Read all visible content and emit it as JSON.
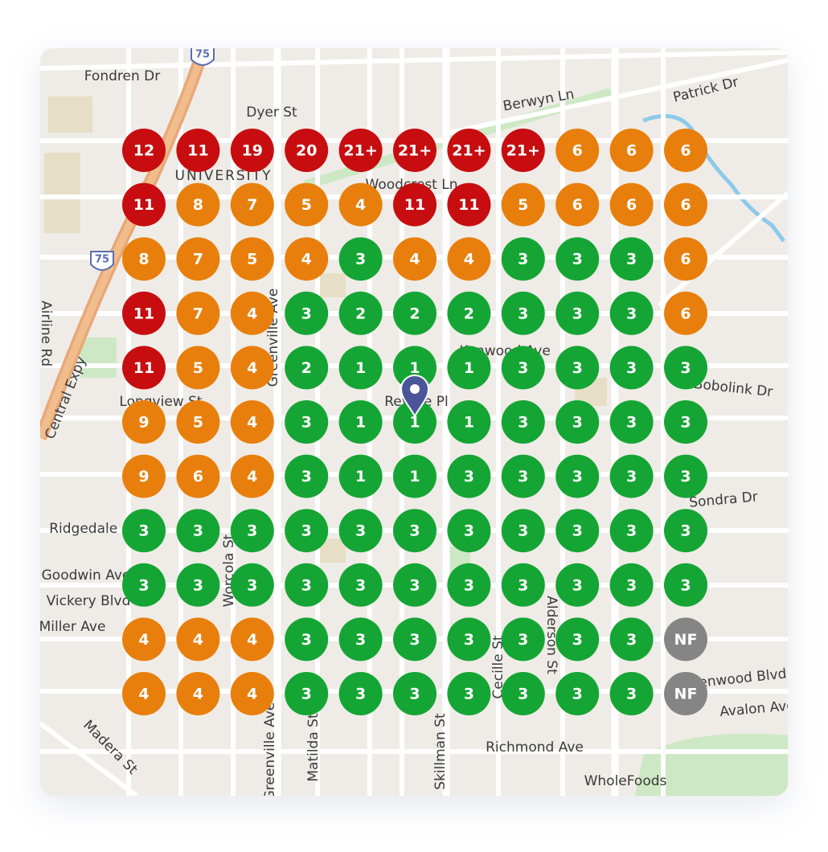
{
  "map": {
    "highway_shields": [
      "75",
      "75"
    ],
    "streets": [
      "Fondren Dr",
      "Dyer St",
      "Berwyn Ln",
      "Patrick Dr",
      "UNIVERSITY",
      "Woodcrest Ln",
      "Airline Rd",
      "Central Expy",
      "Greenville Ave",
      "Longview St",
      "Revere Pl",
      "Kenwood Ave",
      "Bobolink Dr",
      "Sondra Dr",
      "Ridgedale Ave",
      "Goodwin Ave",
      "Vickery Blvd",
      "Miller Ave",
      "Worcola St",
      "Alderson St",
      "Cecille St",
      "Richmond Ave",
      "WholeFoods",
      "Madera St",
      "Matilda St",
      "Greenville Ave",
      "Skillman St",
      "Avalon Ave",
      "Glenwood Blvd"
    ]
  },
  "grid": {
    "rows": [
      [
        "12",
        "11",
        "19",
        "20",
        "21+",
        "21+",
        "21+",
        "21+",
        "6",
        "6",
        "6"
      ],
      [
        "11",
        "8",
        "7",
        "5",
        "4",
        "11",
        "11",
        "5",
        "6",
        "6",
        "6"
      ],
      [
        "8",
        "7",
        "5",
        "4",
        "3",
        "4",
        "4",
        "3",
        "3",
        "3",
        "6"
      ],
      [
        "11",
        "7",
        "4",
        "3",
        "2",
        "2",
        "2",
        "3",
        "3",
        "3",
        "6"
      ],
      [
        "11",
        "5",
        "4",
        "2",
        "1",
        "1",
        "1",
        "3",
        "3",
        "3",
        "3"
      ],
      [
        "9",
        "5",
        "4",
        "3",
        "1",
        "1",
        "1",
        "3",
        "3",
        "3",
        "3"
      ],
      [
        "9",
        "6",
        "4",
        "3",
        "1",
        "1",
        "3",
        "3",
        "3",
        "3",
        "3"
      ],
      [
        "3",
        "3",
        "3",
        "3",
        "3",
        "3",
        "3",
        "3",
        "3",
        "3",
        "3"
      ],
      [
        "3",
        "3",
        "3",
        "3",
        "3",
        "3",
        "3",
        "3",
        "3",
        "3",
        "3"
      ],
      [
        "4",
        "4",
        "4",
        "3",
        "3",
        "3",
        "3",
        "3",
        "3",
        "3",
        "NF"
      ],
      [
        "4",
        "4",
        "4",
        "3",
        "3",
        "3",
        "3",
        "3",
        "3",
        "3",
        "NF"
      ]
    ]
  }
}
